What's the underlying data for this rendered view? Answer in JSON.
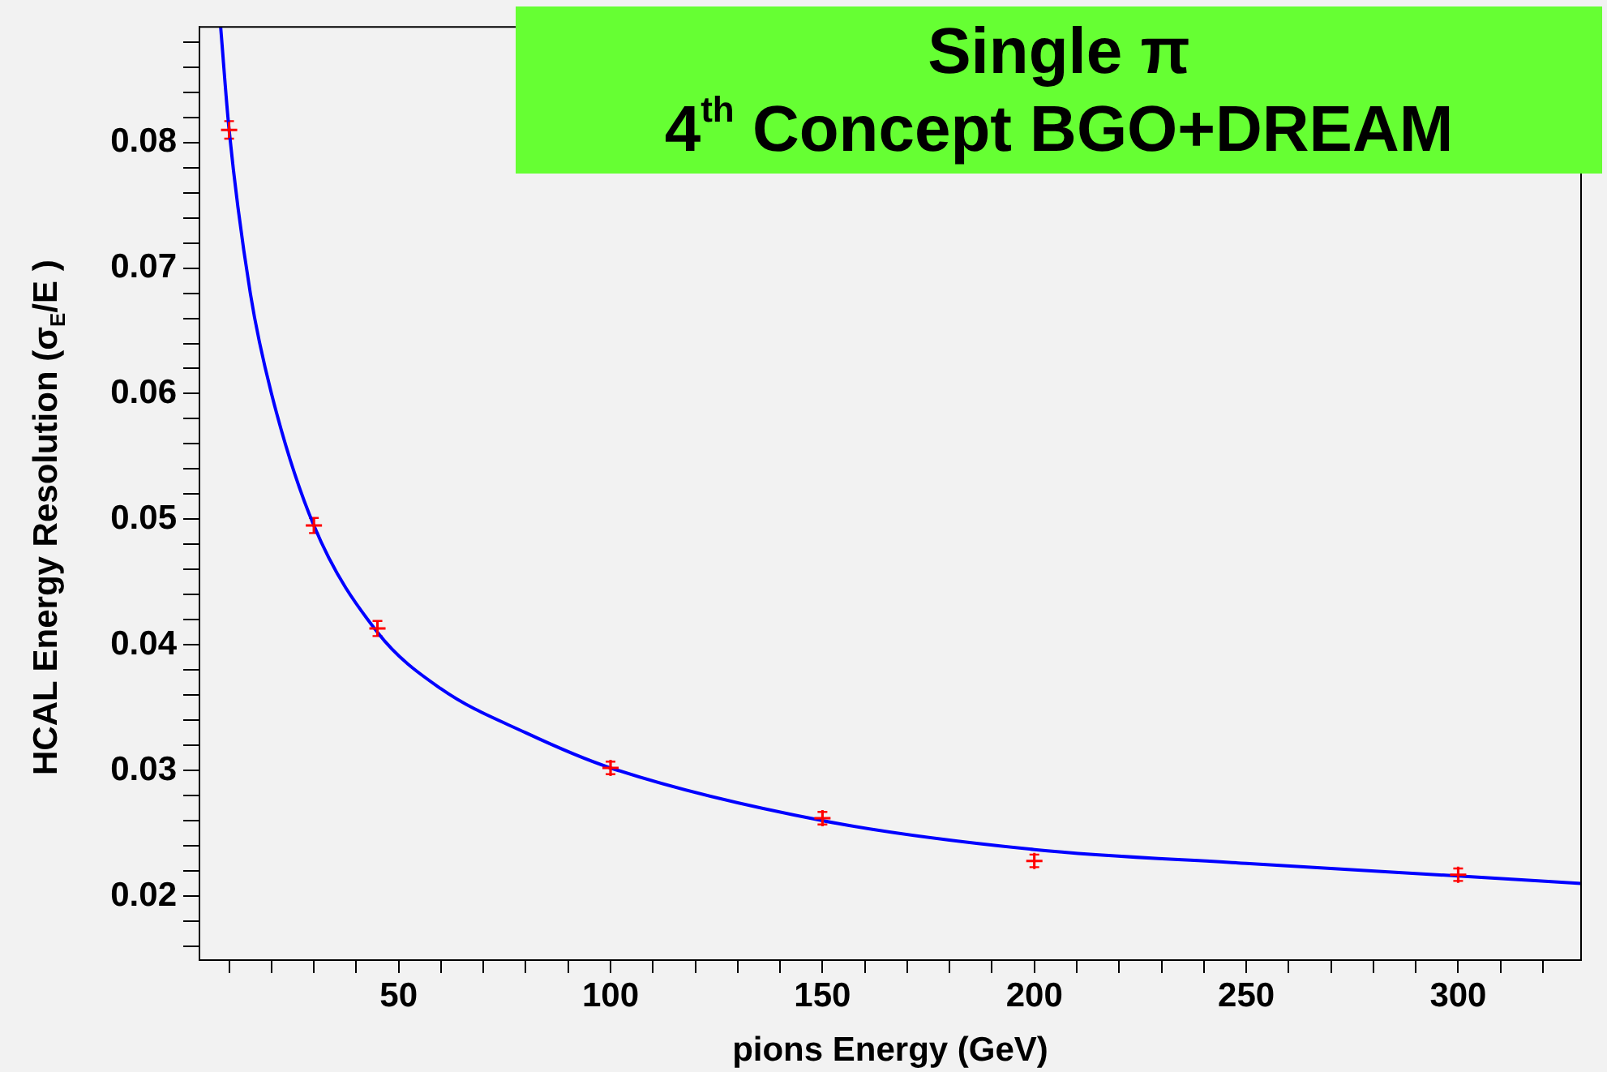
{
  "chart_data": {
    "type": "scatter",
    "title": "Single π\n4$^{th}$ Concept BGO+DREAM",
    "xlabel": "pions Energy (GeV)",
    "ylabel": "HCAL Energy Resolution (σ$_{E}$/E )",
    "xlim": [
      3,
      329
    ],
    "ylim": [
      0.0149,
      0.0892
    ],
    "xticks": [
      {
        "value": 10,
        "label": null
      },
      {
        "value": 20,
        "label": null
      },
      {
        "value": 30,
        "label": null
      },
      {
        "value": 40,
        "label": null
      },
      50,
      {
        "value": 60,
        "label": null
      },
      {
        "value": 70,
        "label": null
      },
      {
        "value": 80,
        "label": null
      },
      {
        "value": 90,
        "label": null
      },
      100,
      {
        "value": 110,
        "label": null
      },
      {
        "value": 120,
        "label": null
      },
      {
        "value": 130,
        "label": null
      },
      {
        "value": 140,
        "label": null
      },
      150,
      {
        "value": 160,
        "label": null
      },
      {
        "value": 170,
        "label": null
      },
      {
        "value": 180,
        "label": null
      },
      {
        "value": 190,
        "label": null
      },
      200,
      {
        "value": 210,
        "label": null
      },
      {
        "value": 220,
        "label": null
      },
      {
        "value": 230,
        "label": null
      },
      {
        "value": 240,
        "label": null
      },
      250,
      {
        "value": 260,
        "label": null
      },
      {
        "value": 270,
        "label": null
      },
      {
        "value": 280,
        "label": null
      },
      {
        "value": 290,
        "label": null
      },
      300,
      {
        "value": 310,
        "label": null
      },
      {
        "value": 320,
        "label": null
      }
    ],
    "yticks": [
      {
        "value": 0.016,
        "label": null
      },
      {
        "value": 0.018,
        "label": null
      },
      0.02,
      {
        "value": 0.022,
        "label": null
      },
      {
        "value": 0.024,
        "label": null
      },
      {
        "value": 0.026,
        "label": null
      },
      {
        "value": 0.028,
        "label": null
      },
      0.03,
      {
        "value": 0.032,
        "label": null
      },
      {
        "value": 0.034,
        "label": null
      },
      {
        "value": 0.036,
        "label": null
      },
      {
        "value": 0.038,
        "label": null
      },
      0.04,
      {
        "value": 0.042,
        "label": null
      },
      {
        "value": 0.044,
        "label": null
      },
      {
        "value": 0.046,
        "label": null
      },
      {
        "value": 0.048,
        "label": null
      },
      0.05,
      {
        "value": 0.052,
        "label": null
      },
      {
        "value": 0.054,
        "label": null
      },
      {
        "value": 0.056,
        "label": null
      },
      {
        "value": 0.058,
        "label": null
      },
      0.06,
      {
        "value": 0.062,
        "label": null
      },
      {
        "value": 0.064,
        "label": null
      },
      {
        "value": 0.066,
        "label": null
      },
      {
        "value": 0.068,
        "label": null
      },
      0.07,
      {
        "value": 0.072,
        "label": null
      },
      {
        "value": 0.074,
        "label": null
      },
      {
        "value": 0.076,
        "label": null
      },
      {
        "value": 0.078,
        "label": null
      },
      0.08,
      {
        "value": 0.082,
        "label": null
      },
      {
        "value": 0.084,
        "label": null
      },
      {
        "value": 0.086,
        "label": null
      },
      {
        "value": 0.088,
        "label": null
      }
    ],
    "grid": false,
    "legend": false,
    "series": [
      {
        "type": "scatter",
        "color": "#ff0000",
        "marker": "cross",
        "x": [
          10,
          30,
          45,
          100,
          150,
          200,
          300
        ],
        "values": [
          0.081,
          0.0495,
          0.0413,
          0.0302,
          0.0262,
          0.0228,
          0.0217
        ],
        "errors": [
          0.0007,
          0.0006,
          0.0006,
          0.0005,
          0.0005,
          0.0005,
          0.0005
        ]
      },
      {
        "type": "line",
        "color": "#0000ff",
        "marker": "none",
        "x": [
          8,
          10,
          15,
          20,
          30,
          45,
          60,
          80,
          100,
          150,
          200,
          250,
          300,
          329
        ],
        "values": [
          0.0892,
          0.081,
          0.068,
          0.06,
          0.0495,
          0.041,
          0.0365,
          0.033,
          0.0302,
          0.026,
          0.0237,
          0.0226,
          0.0216,
          0.021
        ]
      }
    ]
  }
}
